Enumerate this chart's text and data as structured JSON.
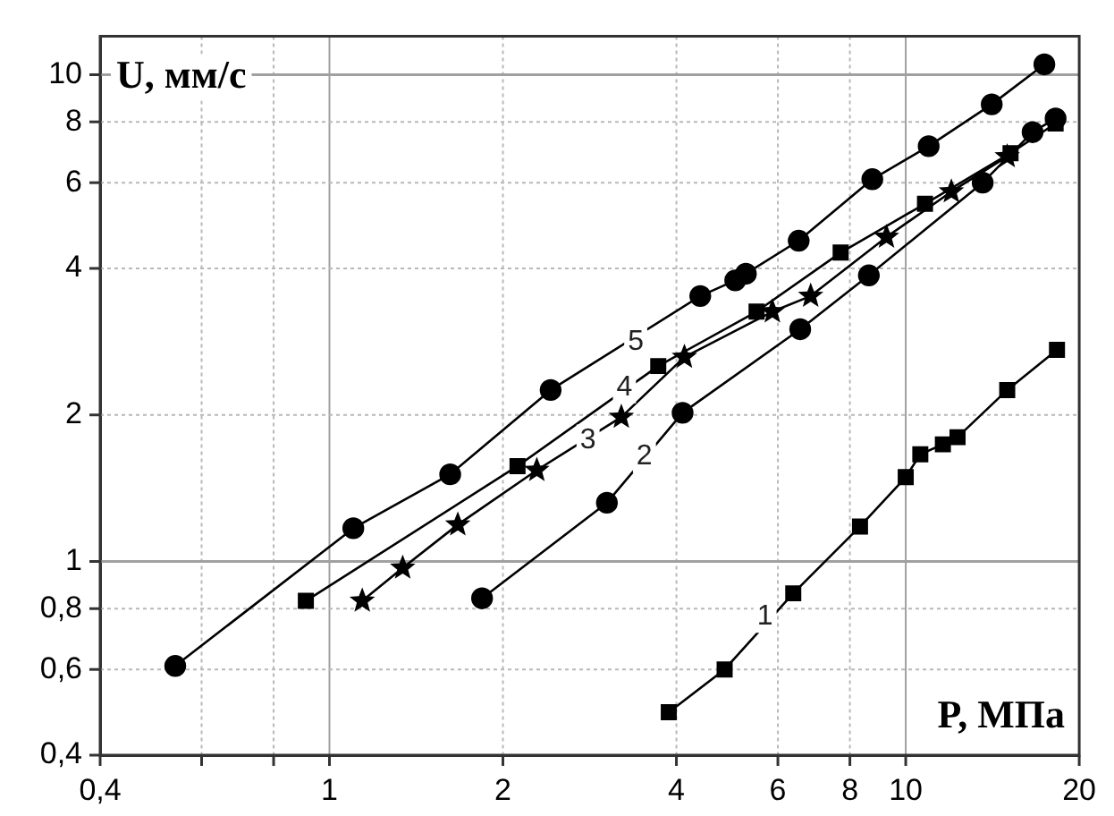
{
  "chart_data": {
    "type": "line",
    "xlabel": "P, МПа",
    "ylabel": "U, мм/с",
    "log": "xy",
    "grid": true,
    "legend": false,
    "line_style": "solid",
    "xlim": [
      0.4,
      20
    ],
    "ylim": [
      0.4,
      12
    ],
    "xticks": [
      {
        "value": 0.4,
        "label": "0,4"
      },
      {
        "value": 0.6,
        "label": null
      },
      {
        "value": 0.8,
        "label": null
      },
      1,
      2,
      4,
      6,
      8,
      10,
      20
    ],
    "yticks": [
      {
        "value": 0.4,
        "label": "0,4"
      },
      {
        "value": 0.6,
        "label": "0,6"
      },
      {
        "value": 0.8,
        "label": "0,8"
      },
      1,
      2,
      4,
      6,
      8,
      10
    ],
    "series": [
      {
        "color": "#000000",
        "marker": "circle",
        "x": [
          0.54,
          1.1,
          1.62,
          2.42,
          4.4,
          5.06,
          5.28,
          6.52,
          8.75,
          10.96,
          14.1,
          17.4
        ],
        "values": [
          0.61,
          1.17,
          1.51,
          2.25,
          3.51,
          3.78,
          3.9,
          4.56,
          6.1,
          7.13,
          8.69,
          10.5
        ]
      },
      {
        "color": "#000000",
        "marker": "square",
        "x": [
          0.91,
          2.12,
          3.72,
          5.51,
          7.71,
          10.8,
          15.2,
          18.2
        ],
        "values": [
          0.83,
          1.57,
          2.52,
          3.26,
          4.31,
          5.43,
          6.9,
          7.94
        ]
      },
      {
        "color": "#000000",
        "marker": "star",
        "x": [
          1.14,
          1.34,
          1.67,
          2.29,
          3.21,
          4.13,
          5.87,
          6.84,
          9.26,
          12.0,
          15.0
        ],
        "values": [
          0.83,
          0.97,
          1.19,
          1.54,
          1.98,
          2.63,
          3.26,
          3.51,
          4.64,
          5.75,
          6.79
        ]
      },
      {
        "color": "#000000",
        "marker": "circle",
        "x": [
          1.84,
          3.03,
          4.1,
          6.56,
          8.63,
          13.6,
          16.6,
          18.2
        ],
        "values": [
          0.84,
          1.32,
          2.02,
          3.0,
          3.87,
          6.0,
          7.62,
          8.13
        ]
      },
      {
        "color": "#000000",
        "marker": "square",
        "x": [
          3.88,
          4.85,
          6.38,
          8.33,
          10.0,
          10.6,
          11.6,
          12.3,
          15.0,
          18.3
        ],
        "values": [
          0.49,
          0.6,
          0.86,
          1.18,
          1.49,
          1.66,
          1.74,
          1.8,
          2.25,
          2.72
        ]
      }
    ],
    "annotations": [
      {
        "text": "5",
        "x": 3.4,
        "y": 2.83
      },
      {
        "text": "4",
        "x": 3.25,
        "y": 2.28
      },
      {
        "text": "3",
        "x": 2.81,
        "y": 1.77
      },
      {
        "text": "2",
        "x": 3.52,
        "y": 1.64
      },
      {
        "text": "1",
        "x": 5.7,
        "y": 0.77
      }
    ]
  }
}
